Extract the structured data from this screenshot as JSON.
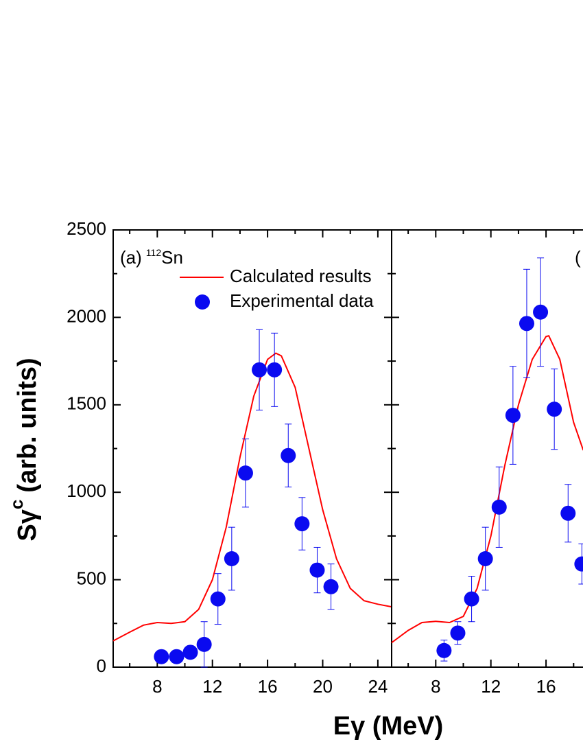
{
  "y_label": "Sγ",
  "y_label_sup": "c",
  "y_label_rest": "(arb. units)",
  "x_label": "Eγ (MeV)",
  "chart_data": [
    {
      "type": "line",
      "annotation": {
        "prefix": "(a)",
        "mass": "112",
        "element": "Sn"
      },
      "xlim": [
        4.8,
        25
      ],
      "ylim": [
        0,
        2500
      ],
      "xticks": [
        8,
        12,
        16,
        20,
        24
      ],
      "yticks": [
        0,
        500,
        1000,
        1500,
        2000,
        2500
      ],
      "show_ytick_labels": true,
      "series": [
        {
          "name": "Calculated results",
          "color": "#ff0000",
          "x": [
            4.8,
            6,
            7,
            8,
            9,
            10,
            11,
            12,
            13,
            14,
            15,
            16,
            16.6,
            17,
            18,
            19,
            20,
            21,
            22,
            23,
            24,
            25
          ],
          "values": [
            150,
            200,
            240,
            255,
            250,
            260,
            330,
            500,
            800,
            1200,
            1550,
            1760,
            1795,
            1780,
            1600,
            1250,
            900,
            620,
            450,
            380,
            360,
            345
          ]
        },
        {
          "name": "Experimental data",
          "color": "#0a0af0",
          "type": "scatter",
          "x": [
            8.3,
            9.4,
            10.4,
            11.4,
            12.4,
            13.4,
            14.4,
            15.4,
            16.5,
            17.5,
            18.5,
            19.6,
            20.6
          ],
          "values": [
            60,
            60,
            85,
            130,
            390,
            620,
            1110,
            1700,
            1700,
            1210,
            820,
            555,
            460
          ],
          "errors": [
            null,
            null,
            null,
            130,
            145,
            180,
            195,
            230,
            210,
            180,
            150,
            130,
            130
          ]
        }
      ]
    },
    {
      "type": "line",
      "annotation": {
        "prefix": "("
      },
      "xlim": [
        4.8,
        25
      ],
      "ylim": [
        0,
        2500
      ],
      "xticks": [
        8,
        12,
        16
      ],
      "yticks": [
        0,
        500,
        1000,
        1500,
        2000,
        2500
      ],
      "show_ytick_labels": false,
      "series": [
        {
          "color": "#ff0000",
          "x": [
            4.8,
            6,
            7,
            8,
            9,
            10,
            11,
            12,
            13,
            14,
            15,
            16,
            16.2,
            17,
            18,
            18.7
          ],
          "values": [
            140,
            210,
            255,
            262,
            255,
            290,
            450,
            750,
            1150,
            1500,
            1760,
            1890,
            1895,
            1760,
            1400,
            1240
          ]
        },
        {
          "color": "#0a0af0",
          "type": "scatter",
          "x": [
            8.6,
            9.6,
            10.6,
            11.6,
            12.6,
            13.6,
            14.6,
            15.6,
            16.6,
            17.6,
            18.6
          ],
          "values": [
            95,
            195,
            390,
            620,
            915,
            1440,
            1965,
            2030,
            1475,
            880,
            590
          ],
          "errors": [
            60,
            65,
            130,
            180,
            230,
            280,
            310,
            310,
            230,
            165,
            115
          ]
        }
      ]
    }
  ]
}
